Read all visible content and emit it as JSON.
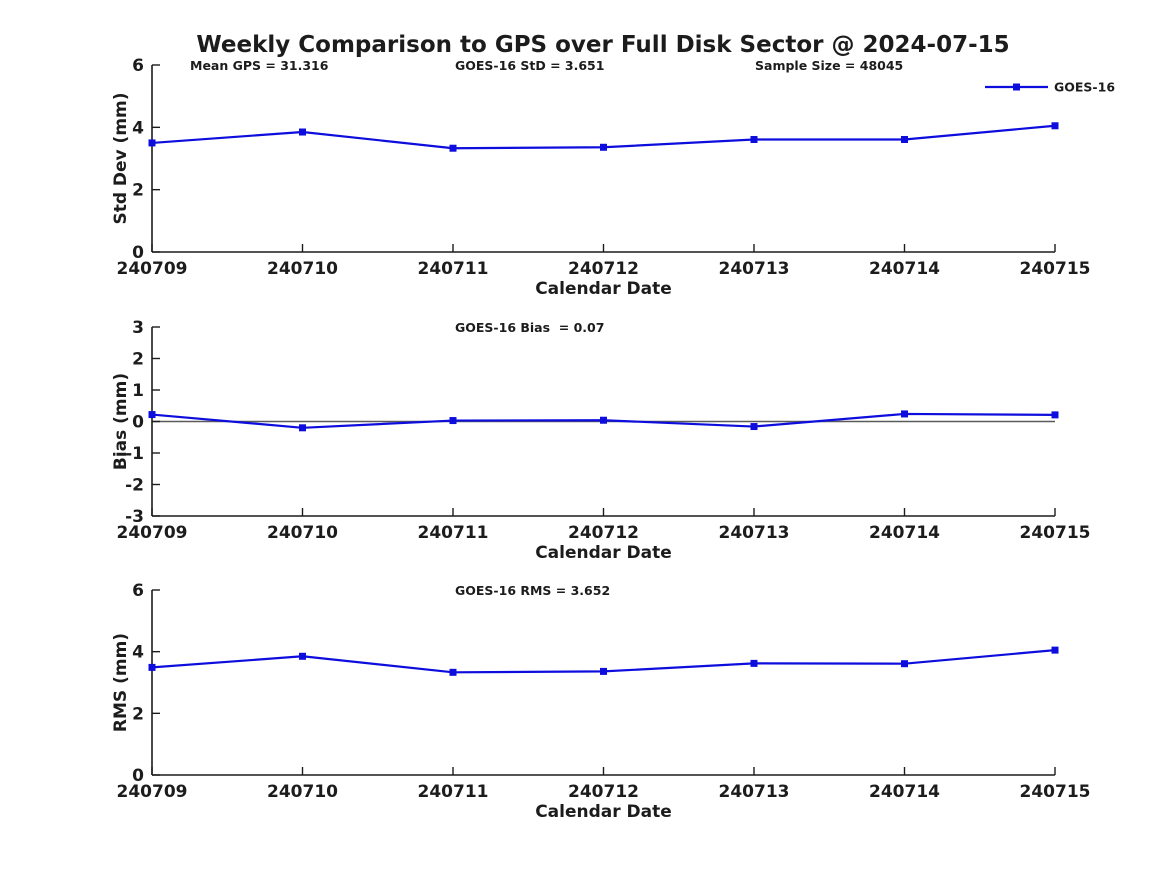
{
  "title": "Weekly Comparison to GPS over Full Disk Sector @ 2024-07-15",
  "colors": {
    "series": "#0d0ddd",
    "axis": "#1c1c1c",
    "text": "#1c1c1c",
    "zero_line": "#5a5a5a",
    "background": "#ffffff"
  },
  "legend": {
    "label": "GOES-16",
    "position": "top-right-of-first-subplot"
  },
  "x_axis": {
    "label": "Calendar Date",
    "categories": [
      "240709",
      "240710",
      "240711",
      "240712",
      "240713",
      "240714",
      "240715"
    ]
  },
  "chart_data": [
    {
      "type": "line",
      "name": "std-dev",
      "title_annotations": [
        "Mean GPS = 31.316",
        "GOES-16 StD = 3.651",
        "Sample Size = 48045"
      ],
      "categories": [
        "240709",
        "240710",
        "240711",
        "240712",
        "240713",
        "240714",
        "240715"
      ],
      "series": [
        {
          "name": "GOES-16",
          "values": [
            3.5,
            3.85,
            3.33,
            3.36,
            3.61,
            3.61,
            4.05
          ]
        }
      ],
      "xlabel": "Calendar Date",
      "ylabel": "Std Dev (mm)",
      "ylim": [
        0,
        6
      ],
      "yticks": [
        0,
        2,
        4,
        6
      ],
      "grid": false,
      "legend_entries": [
        "GOES-16"
      ],
      "zero_line": false
    },
    {
      "type": "line",
      "name": "bias",
      "title_annotations": [
        "GOES-16 Bias  = 0.07"
      ],
      "categories": [
        "240709",
        "240710",
        "240711",
        "240712",
        "240713",
        "240714",
        "240715"
      ],
      "series": [
        {
          "name": "GOES-16",
          "values": [
            0.22,
            -0.2,
            0.03,
            0.04,
            -0.16,
            0.24,
            0.21
          ]
        }
      ],
      "xlabel": "Calendar Date",
      "ylabel": "Bias (mm)",
      "ylim": [
        -3,
        3
      ],
      "yticks": [
        -3,
        -2,
        -1,
        0,
        1,
        2,
        3
      ],
      "grid": false,
      "legend_entries": [],
      "zero_line": true
    },
    {
      "type": "line",
      "name": "rms",
      "title_annotations": [
        "GOES-16 RMS = 3.652"
      ],
      "categories": [
        "240709",
        "240710",
        "240711",
        "240712",
        "240713",
        "240714",
        "240715"
      ],
      "series": [
        {
          "name": "GOES-16",
          "values": [
            3.49,
            3.85,
            3.33,
            3.36,
            3.62,
            3.61,
            4.05
          ]
        }
      ],
      "xlabel": "Calendar Date",
      "ylabel": "RMS (mm)",
      "ylim": [
        0,
        6
      ],
      "yticks": [
        0,
        2,
        4,
        6
      ],
      "grid": false,
      "legend_entries": [],
      "zero_line": false
    }
  ]
}
